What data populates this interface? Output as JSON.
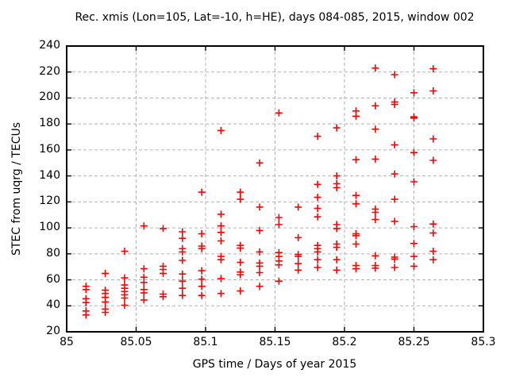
{
  "window": {
    "background": "#ffffff"
  },
  "colors": {
    "marker": "#ff0000",
    "grid": "#b0b0b0",
    "axis": "#000000",
    "text": "#000000"
  },
  "chart_data": {
    "type": "scatter",
    "title": "Rec. xmis (Lon=105, Lat=-10, h=HE), days 084-085, 2015, window 002",
    "xlabel": "GPS time / Days of year 2015",
    "ylabel": "STEC from uqrg / TECUs",
    "xlim": [
      85.0,
      85.3
    ],
    "ylim": [
      20,
      240
    ],
    "grid": true,
    "legend_position": "none",
    "marker_symbol": "plus",
    "xticks": [
      {
        "value": 85.0,
        "label": "85"
      },
      {
        "value": 85.05,
        "label": "85.05"
      },
      {
        "value": 85.1,
        "label": "85.1"
      },
      {
        "value": 85.15,
        "label": "85.15"
      },
      {
        "value": 85.2,
        "label": "85.2"
      },
      {
        "value": 85.25,
        "label": "85.25"
      },
      {
        "value": 85.3,
        "label": "85.3"
      }
    ],
    "yticks": [
      {
        "value": 20,
        "label": "20"
      },
      {
        "value": 40,
        "label": "40"
      },
      {
        "value": 60,
        "label": "60"
      },
      {
        "value": 80,
        "label": "80"
      },
      {
        "value": 100,
        "label": "100"
      },
      {
        "value": 120,
        "label": "120"
      },
      {
        "value": 140,
        "label": "140"
      },
      {
        "value": 160,
        "label": "160"
      },
      {
        "value": 180,
        "label": "180"
      },
      {
        "value": 200,
        "label": "200"
      },
      {
        "value": 220,
        "label": "220"
      },
      {
        "value": 240,
        "label": "240"
      }
    ],
    "series": [
      {
        "name": "STEC samples",
        "groups": [
          {
            "x": 85.0139,
            "y": [
              55,
              52.5,
              45.5,
              42.5,
              36,
              33
            ]
          },
          {
            "x": 85.0278,
            "y": [
              65,
              52,
              49.5,
              46.5,
              43,
              37.5,
              35
            ]
          },
          {
            "x": 85.0417,
            "y": [
              82,
              61.5,
              56,
              53.5,
              51,
              48.5,
              46,
              40.5
            ]
          },
          {
            "x": 85.0556,
            "y": [
              101.5,
              68.5,
              62,
              58,
              52.5,
              50,
              44.5
            ]
          },
          {
            "x": 85.0694,
            "y": [
              99.5,
              70.5,
              68,
              65,
              49,
              47
            ]
          },
          {
            "x": 85.0833,
            "y": [
              97,
              92,
              84,
              81.5,
              75,
              64.5,
              59,
              53.5,
              48
            ]
          },
          {
            "x": 85.0972,
            "y": [
              127.5,
              95.5,
              86,
              84,
              67,
              60.5,
              55,
              48
            ]
          },
          {
            "x": 85.1111,
            "y": [
              175,
              110.5,
              101.5,
              96.5,
              90,
              78,
              75.5,
              61,
              49.5
            ]
          },
          {
            "x": 85.125,
            "y": [
              127.5,
              122,
              86.5,
              84.5,
              73.5,
              66,
              64,
              51.5
            ]
          },
          {
            "x": 85.1389,
            "y": [
              150,
              116,
              98,
              81.5,
              73,
              70.5,
              65.5,
              55
            ]
          },
          {
            "x": 85.1528,
            "y": [
              188.5,
              108,
              102.5,
              81,
              78,
              74.5,
              71.5,
              59
            ]
          },
          {
            "x": 85.1667,
            "y": [
              116,
              92.5,
              79.5,
              78,
              72.5,
              67.5
            ]
          },
          {
            "x": 85.1806,
            "y": [
              170.5,
              133.5,
              123.5,
              115,
              108.5,
              86.5,
              84,
              81.5,
              75.5,
              69.5
            ]
          },
          {
            "x": 85.1944,
            "y": [
              177,
              140,
              134,
              131,
              102.5,
              99.5,
              87.5,
              85,
              75.5,
              67.5
            ]
          },
          {
            "x": 85.2083,
            "y": [
              190,
              186,
              152.5,
              125,
              118.5,
              95.5,
              94,
              87.5,
              71,
              68.5
            ]
          },
          {
            "x": 85.2222,
            "y": [
              223,
              194,
              176,
              153,
              114.5,
              112,
              106.5,
              78.5,
              71,
              69
            ]
          },
          {
            "x": 85.2361,
            "y": [
              218,
              197,
              195,
              164,
              141.5,
              122,
              105,
              77.5,
              76,
              69.5
            ]
          },
          {
            "x": 85.25,
            "y": [
              204,
              185.5,
              184.5,
              158,
              135.5,
              101,
              88,
              78,
              70.5
            ]
          },
          {
            "x": 85.2639,
            "y": [
              222.5,
              205.5,
              168.5,
              152,
              103,
              96,
              82,
              75.5
            ]
          }
        ]
      }
    ]
  }
}
